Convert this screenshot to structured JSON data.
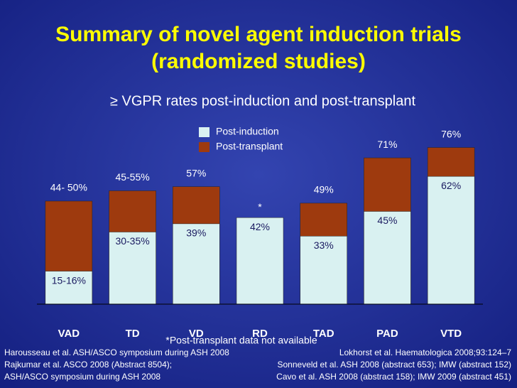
{
  "chart_data": {
    "type": "overlapping-bar",
    "title": "Summary of novel agent induction trials",
    "title_line2": "(randomized studies)",
    "subtitle": "≥ VGPR rates post-induction and post-transplant",
    "categories": [
      "VAD",
      "TD",
      "VD",
      "RD",
      "TAD",
      "PAD",
      "VTD"
    ],
    "series": [
      {
        "name": "Post-transplant",
        "color": "#9e3a0e",
        "values": [
          50,
          55,
          57,
          null,
          49,
          71,
          76
        ],
        "value_labels": [
          "44- 50%",
          "45-55%",
          "57%",
          "*",
          "49%",
          "71%",
          "76%"
        ]
      },
      {
        "name": "Post-induction",
        "color": "#d9f1f1",
        "values": [
          16,
          35,
          39,
          42,
          33,
          45,
          62
        ],
        "value_labels": [
          "15-16%",
          "30-35%",
          "39%",
          "42%",
          "33%",
          "45%",
          "62%"
        ]
      }
    ],
    "ylim": [
      0,
      80
    ],
    "footnote": "*Post-transplant data not available",
    "references_left": [
      "Harousseau et al. ASH/ASCO symposium during ASH 2008",
      "Rajkumar et al. ASCO 2008 (Abstract 8504);",
      "ASH/ASCO symposium during ASH 2008"
    ],
    "references_right": [
      "Lokhorst et al. Haematologica 2008;93:124–7",
      "Sonneveld et al. ASH 2008 (abstract 653); IMW (abstract 152)",
      "Cavo et al. ASH 2008 (abstract 158); IMW 2009 (abstract 451)"
    ]
  }
}
